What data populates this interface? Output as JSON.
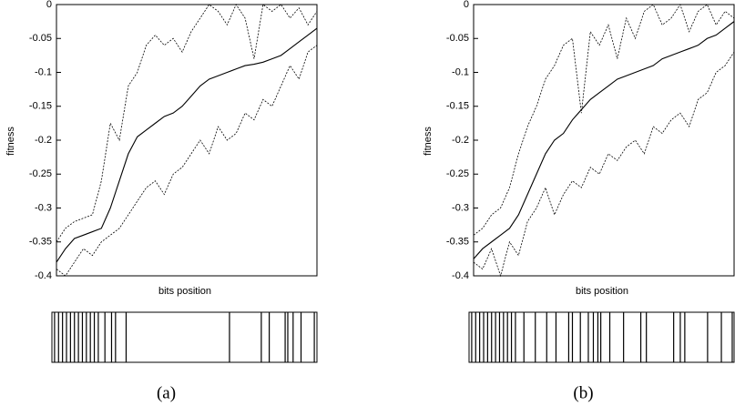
{
  "chart_data": [
    {
      "type": "line",
      "y_label": "fitness",
      "x_label": "bits position",
      "caption": "(a)",
      "ylim": [
        -0.4,
        0
      ],
      "yticks": [
        0,
        -0.05,
        -0.1,
        -0.15,
        -0.2,
        -0.25,
        -0.3,
        -0.35,
        -0.4
      ],
      "series": [
        {
          "color": "#000000",
          "dashed": false,
          "values": [
            -0.38,
            -0.36,
            -0.345,
            -0.34,
            -0.335,
            -0.33,
            -0.3,
            -0.26,
            -0.22,
            -0.195,
            -0.185,
            -0.175,
            -0.165,
            -0.16,
            -0.15,
            -0.135,
            -0.12,
            -0.11,
            -0.105,
            -0.1,
            -0.095,
            -0.09,
            -0.088,
            -0.085,
            -0.08,
            -0.075,
            -0.065,
            -0.055,
            -0.045,
            -0.035
          ]
        },
        {
          "color": "#000000",
          "dashed": true,
          "values": [
            -0.35,
            -0.33,
            -0.32,
            -0.315,
            -0.31,
            -0.26,
            -0.175,
            -0.2,
            -0.12,
            -0.1,
            -0.06,
            -0.045,
            -0.06,
            -0.05,
            -0.07,
            -0.04,
            -0.02,
            0,
            -0.01,
            -0.03,
            0,
            -0.02,
            -0.08,
            0,
            -0.01,
            0,
            -0.02,
            -0.005,
            -0.03,
            -0.01
          ]
        },
        {
          "color": "#000000",
          "dashed": true,
          "values": [
            -0.39,
            -0.4,
            -0.38,
            -0.36,
            -0.37,
            -0.35,
            -0.34,
            -0.33,
            -0.31,
            -0.29,
            -0.27,
            -0.26,
            -0.28,
            -0.25,
            -0.24,
            -0.22,
            -0.2,
            -0.22,
            -0.18,
            -0.2,
            -0.19,
            -0.16,
            -0.17,
            -0.14,
            -0.15,
            -0.12,
            -0.09,
            -0.11,
            -0.07,
            -0.06
          ]
        }
      ],
      "bits": [
        1,
        2.5,
        4,
        5.5,
        7,
        8.5,
        10,
        11.5,
        13,
        14.5,
        16,
        17.5,
        20,
        22.5,
        24,
        28,
        67,
        79,
        82,
        88,
        89,
        91,
        94,
        99
      ]
    },
    {
      "type": "line",
      "y_label": "fitness",
      "x_label": "bits position",
      "caption": "(b)",
      "ylim": [
        -0.4,
        0
      ],
      "yticks": [
        0,
        -0.05,
        -0.1,
        -0.15,
        -0.2,
        -0.25,
        -0.3,
        -0.35,
        -0.4
      ],
      "series": [
        {
          "color": "#000000",
          "dashed": false,
          "values": [
            -0.375,
            -0.36,
            -0.35,
            -0.34,
            -0.33,
            -0.31,
            -0.28,
            -0.25,
            -0.22,
            -0.2,
            -0.19,
            -0.17,
            -0.155,
            -0.14,
            -0.13,
            -0.12,
            -0.11,
            -0.105,
            -0.1,
            -0.095,
            -0.09,
            -0.08,
            -0.075,
            -0.07,
            -0.065,
            -0.06,
            -0.05,
            -0.045,
            -0.035,
            -0.025
          ]
        },
        {
          "color": "#000000",
          "dashed": true,
          "values": [
            -0.34,
            -0.33,
            -0.31,
            -0.3,
            -0.27,
            -0.22,
            -0.18,
            -0.15,
            -0.11,
            -0.09,
            -0.06,
            -0.05,
            -0.16,
            -0.04,
            -0.06,
            -0.03,
            -0.08,
            -0.02,
            -0.05,
            -0.01,
            0,
            -0.03,
            -0.02,
            0,
            -0.04,
            -0.01,
            0,
            -0.03,
            -0.01,
            -0.02
          ]
        },
        {
          "color": "#000000",
          "dashed": true,
          "values": [
            -0.38,
            -0.39,
            -0.36,
            -0.4,
            -0.35,
            -0.37,
            -0.32,
            -0.3,
            -0.27,
            -0.31,
            -0.28,
            -0.26,
            -0.27,
            -0.24,
            -0.25,
            -0.22,
            -0.23,
            -0.21,
            -0.2,
            -0.22,
            -0.18,
            -0.19,
            -0.17,
            -0.16,
            -0.18,
            -0.14,
            -0.13,
            -0.1,
            -0.09,
            -0.07
          ]
        }
      ],
      "bits": [
        1,
        2.5,
        4,
        5.5,
        7,
        8.5,
        10,
        11.5,
        13,
        14.5,
        16,
        17.5,
        20.7,
        25,
        29.3,
        32.8,
        37.6,
        39,
        42,
        45,
        46.9,
        48.6,
        49.7,
        53.1,
        58.3,
        64.8,
        66.9,
        77.2,
        79.7,
        81.4,
        90,
        95.2,
        99.3
      ]
    }
  ]
}
